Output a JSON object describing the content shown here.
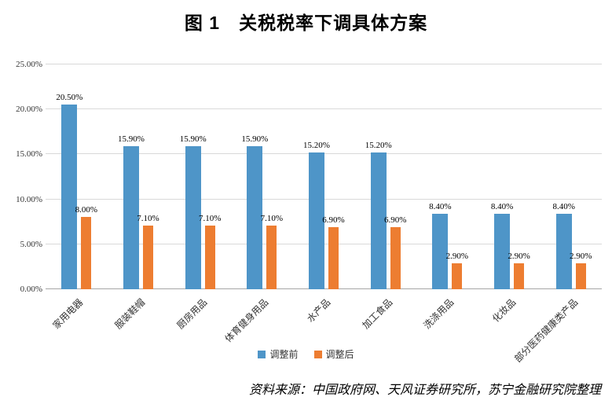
{
  "title": "图 1　关税税率下调具体方案",
  "source_note": "资料来源：中国政府网、天风证券研究所，苏宁金融研究院整理",
  "chart_data": {
    "type": "bar",
    "title": "图 1　关税税率下调具体方案",
    "categories": [
      "家用电器",
      "服装鞋帽",
      "厨房用品",
      "体育健身用品",
      "水产品",
      "加工食品",
      "洗涤用品",
      "化妆品",
      "部分医药健康类产品"
    ],
    "series": [
      {
        "name": "调整前",
        "color": "#4e95c8",
        "values": [
          20.5,
          15.9,
          15.9,
          15.9,
          15.2,
          15.2,
          8.4,
          8.4,
          8.4
        ]
      },
      {
        "name": "调整后",
        "color": "#ed7d31",
        "values": [
          8.0,
          7.1,
          7.1,
          7.1,
          6.9,
          6.9,
          2.9,
          2.9,
          2.9
        ]
      }
    ],
    "value_suffix": "%",
    "data_labels_visible": true,
    "ylim": [
      0,
      25
    ],
    "yticks": [
      0,
      5,
      10,
      15,
      20,
      25
    ],
    "ytick_labels": [
      "0.00%",
      "5.00%",
      "10.00%",
      "15.00%",
      "20.00%",
      "25.00%"
    ],
    "grid": true,
    "legend_position": "bottom",
    "xlabel": "",
    "ylabel": ""
  }
}
